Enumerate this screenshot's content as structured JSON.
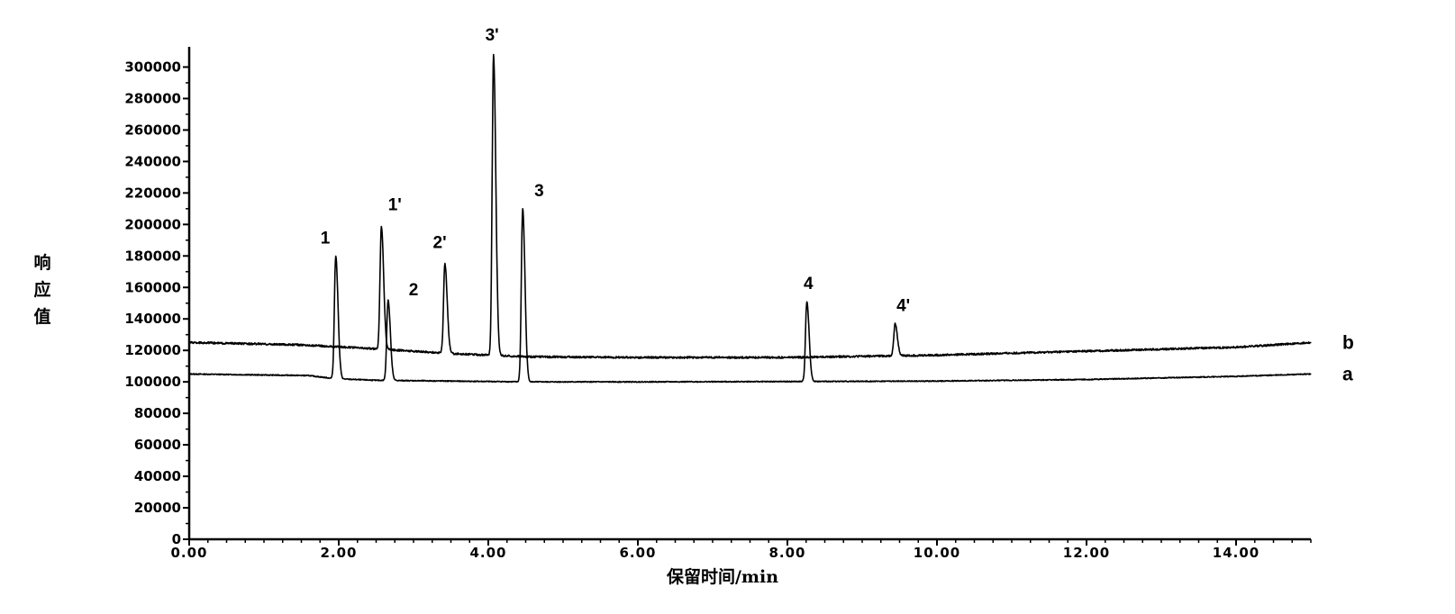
{
  "chart_data": {
    "type": "line",
    "title": "",
    "xlabel": "保留时间/min",
    "ylabel": "响应值",
    "xlim": [
      0,
      15
    ],
    "ylim": [
      0,
      310000
    ],
    "x_ticks": [
      0,
      2,
      4,
      6,
      8,
      10,
      12,
      14
    ],
    "x_tick_labels": [
      "0.00",
      "2.00",
      "4.00",
      "6.00",
      "8.00",
      "10.00",
      "12.00",
      "14.00"
    ],
    "y_ticks": [
      0,
      20000,
      40000,
      60000,
      80000,
      100000,
      120000,
      140000,
      160000,
      180000,
      200000,
      220000,
      240000,
      260000,
      280000,
      300000
    ],
    "y_tick_labels": [
      "0",
      "20000",
      "40000",
      "60000",
      "80000",
      "100000",
      "120000",
      "140000",
      "160000",
      "180000",
      "200000",
      "220000",
      "240000",
      "260000",
      "280000",
      "300000"
    ],
    "grid": false,
    "series": [
      {
        "name": "a",
        "baseline": [
          [
            0,
            105000
          ],
          [
            1.6,
            104000
          ],
          [
            1.95,
            102000
          ],
          [
            2.5,
            101000
          ],
          [
            3.5,
            100500
          ],
          [
            4.5,
            100000
          ],
          [
            6,
            100000
          ],
          [
            8,
            100200
          ],
          [
            10,
            100500
          ],
          [
            12,
            101500
          ],
          [
            14,
            103500
          ],
          [
            15,
            105000
          ]
        ],
        "peaks": [
          {
            "label": "1",
            "x": 1.96,
            "y": 180000
          },
          {
            "label": "2",
            "x": 2.66,
            "y": 152000
          },
          {
            "label": "3",
            "x": 4.46,
            "y": 210000
          },
          {
            "label": "4",
            "x": 8.26,
            "y": 151000
          }
        ]
      },
      {
        "name": "b",
        "baseline": [
          [
            0,
            125000
          ],
          [
            1.5,
            123500
          ],
          [
            2.5,
            121000
          ],
          [
            3.5,
            118000
          ],
          [
            4.5,
            116000
          ],
          [
            6,
            115500
          ],
          [
            8,
            115500
          ],
          [
            10,
            117000
          ],
          [
            12,
            119500
          ],
          [
            14,
            122000
          ],
          [
            15,
            125000
          ]
        ],
        "peaks": [
          {
            "label": "1'",
            "x": 2.57,
            "y": 199000
          },
          {
            "label": "2'",
            "x": 3.42,
            "y": 175000
          },
          {
            "label": "3'",
            "x": 4.07,
            "y": 308000
          },
          {
            "label": "4'",
            "x": 9.44,
            "y": 137000
          }
        ]
      }
    ],
    "peak_labels": [
      {
        "text": "1",
        "x": 1.82,
        "y": 188000
      },
      {
        "text": "1'",
        "x": 2.75,
        "y": 209000
      },
      {
        "text": "2",
        "x": 3.0,
        "y": 155000
      },
      {
        "text": "2'",
        "x": 3.35,
        "y": 185000
      },
      {
        "text": "3'",
        "x": 4.05,
        "y": 317000
      },
      {
        "text": "3",
        "x": 4.68,
        "y": 218000
      },
      {
        "text": "4",
        "x": 8.28,
        "y": 159000
      },
      {
        "text": "4'",
        "x": 9.55,
        "y": 145000
      }
    ]
  }
}
